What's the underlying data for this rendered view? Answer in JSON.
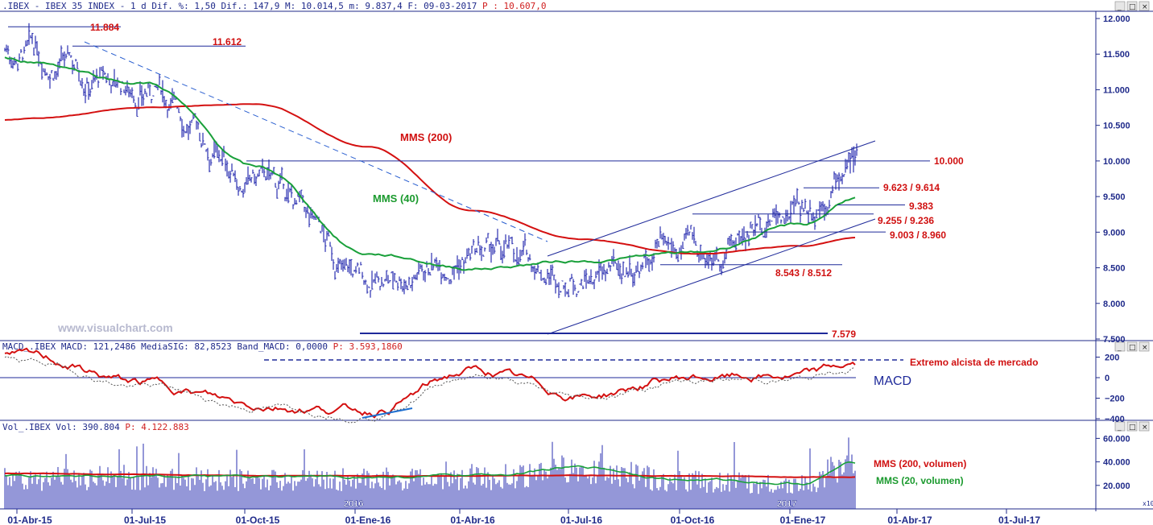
{
  "panels": {
    "price": {
      "header": {
        "text": ".IBEX - IBEX 35 INDEX -  1 d Dif. %: 1,50 Dif.: 147,9 M: 10.014,5 m: 9.837,4 F: 09-03-2017",
        "p_label": " P : 10.607,0"
      },
      "y_ticks": [
        "12.000",
        "11.500",
        "11.000",
        "10.500",
        "10.000",
        "9.500",
        "9.000",
        "8.500",
        "8.000",
        "7.500"
      ],
      "levels": [
        {
          "name": "level-11884",
          "label": "11.884",
          "value": 11884
        },
        {
          "name": "level-11612",
          "label": "11.612",
          "value": 11612
        },
        {
          "name": "level-10000",
          "label": "10.000",
          "value": 10000
        },
        {
          "name": "level-9623",
          "label": "9.623 / 9.614",
          "value": 9623
        },
        {
          "name": "level-9383",
          "label": "9.383",
          "value": 9383
        },
        {
          "name": "level-9255",
          "label": "9.255 / 9.236",
          "value": 9255
        },
        {
          "name": "level-9003",
          "label": "9.003 / 8.960",
          "value": 9003
        },
        {
          "name": "level-8543",
          "label": "8.543 / 8.512",
          "value": 8543
        },
        {
          "name": "level-7579",
          "label": "7.579",
          "value": 7579
        }
      ],
      "annotations": {
        "mms200": "MMS (200)",
        "mms40": "MMS (40)"
      },
      "watermark": "www.visualchart.com"
    },
    "macd": {
      "header": {
        "text": "MACD_.IBEX MACD: 121,2486 MediaSIG: 82,8523 Band_MACD: 0,0000",
        "p_label": " P: 3.593,1860"
      },
      "y_ticks": [
        "200",
        "0",
        "−200",
        "−400"
      ],
      "annotations": {
        "extreme": "Extremo alcista de mercado",
        "label": "MACD"
      }
    },
    "volume": {
      "header": {
        "text": "Vol_.IBEX Vol: 390.804",
        "p_label": " P: 4.122.883"
      },
      "y_ticks": [
        "60.000",
        "40.000",
        "20.000"
      ],
      "annotations": {
        "mms200": "MMS (200, volumen)",
        "mms20": "MMS (20, volumen)"
      },
      "unit": "x10",
      "year_label": "2017"
    }
  },
  "x_axis": {
    "ticks": [
      "01-Abr-15",
      "01-Jul-15",
      "01-Oct-15",
      "01-Ene-16",
      "01-Abr-16",
      "01-Jul-16",
      "01-Oct-16",
      "01-Ene-17",
      "01-Abr-17",
      "01-Jul-17"
    ],
    "year_marks": [
      "2016",
      "2017"
    ]
  },
  "chart_data": {
    "type": "line",
    "title": "IBEX 35 INDEX",
    "x": [
      "01-Abr-15",
      "01-Jul-15",
      "01-Oct-15",
      "01-Ene-16",
      "01-Abr-16",
      "01-Jul-16",
      "01-Oct-16",
      "01-Ene-17",
      "09-03-2017"
    ],
    "series": [
      {
        "name": "IBEX",
        "values": [
          11500,
          11000,
          9700,
          8300,
          8700,
          8400,
          8700,
          9400,
          10014
        ]
      },
      {
        "name": "MMS (200)",
        "values": [
          10600,
          10750,
          10800,
          10200,
          9300,
          8900,
          8700,
          8800,
          8920
        ]
      },
      {
        "name": "MMS (40)",
        "values": [
          11400,
          11100,
          9900,
          8700,
          8500,
          8600,
          8700,
          9100,
          9490
        ]
      },
      {
        "name": "MACD",
        "values": [
          180,
          -60,
          -260,
          -320,
          60,
          -170,
          0,
          10,
          121
        ]
      },
      {
        "name": "Vol",
        "values": [
          28000,
          29000,
          26000,
          27000,
          28000,
          35000,
          25000,
          22000,
          39080
        ]
      }
    ],
    "ylim": [
      7500,
      12100
    ],
    "macd_ylim": [
      -440,
      220
    ],
    "volume_ylim": [
      0,
      68000
    ]
  },
  "colors": {
    "price": "#2a2fb0",
    "mms200": "#d41010",
    "mms40": "#19a03a",
    "grid": "#1f2a8a",
    "axis_bg": "#ffffff"
  }
}
